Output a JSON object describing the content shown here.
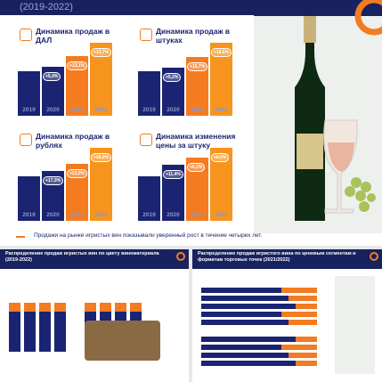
{
  "header": {
    "period": "(2019-2022)"
  },
  "charts": [
    {
      "title": "Динамика продаж в ДАЛ",
      "years": [
        "2019",
        "2020",
        "2021",
        "2022"
      ],
      "values": [
        100,
        105.4,
        119.2,
        135.5
      ],
      "growth_labels": [
        "+5,4%",
        "+13,1%",
        "+13,7%"
      ]
    },
    {
      "title": "Динамика продаж в штуках",
      "years": [
        "2019",
        "2020",
        "2021",
        "2022"
      ],
      "values": [
        100,
        105.2,
        121.7,
        144.3
      ],
      "growth_labels": [
        "+5,2%",
        "+15,7%",
        "+18,6%"
      ]
    },
    {
      "title": "Динамика продаж в рублях",
      "years": [
        "2019",
        "2020",
        "2021",
        "2022"
      ],
      "values": [
        100,
        117.3,
        144.2,
        199.0
      ],
      "growth_labels": [
        "+17,3%",
        "+22,9%",
        "+38,0%"
      ]
    },
    {
      "title": "Динамика изменения цены за штуку",
      "years": [
        "2019",
        "2020",
        "2021",
        "2022"
      ],
      "values": [
        100,
        111.4,
        118.3,
        127.8
      ],
      "growth_labels": [
        "+11,4%",
        "+6,2%",
        "+8,0%"
      ]
    }
  ],
  "caption": "Продажи на рынке игристых вин показывали уверенный рост в течение четырех лет.",
  "slides": [
    {
      "title": "Распределение продаж игристых вин по цвету виноматериала (2019-2022)"
    },
    {
      "title": "Распределение продаж игристого вина по ценовым сегментам и форматам торговых точек (2021/2022)"
    }
  ]
}
